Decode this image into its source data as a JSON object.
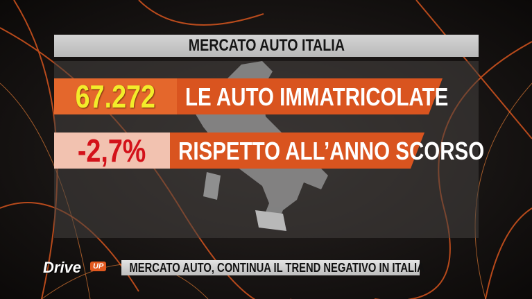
{
  "header": {
    "title": "MERCATO AUTO ITALIA"
  },
  "rows": [
    {
      "value": "67.272",
      "label": "LE AUTO IMMATRICOLATE"
    },
    {
      "value": "-2,7%",
      "label": "RISPETTO ALL’ANNO SCORSO"
    }
  ],
  "logo": {
    "text": "Drive",
    "badge": "UP"
  },
  "ticker": {
    "text": "MERCATO AUTO, CONTINUA IL TREND NEGATIVO IN ITALIA"
  }
}
